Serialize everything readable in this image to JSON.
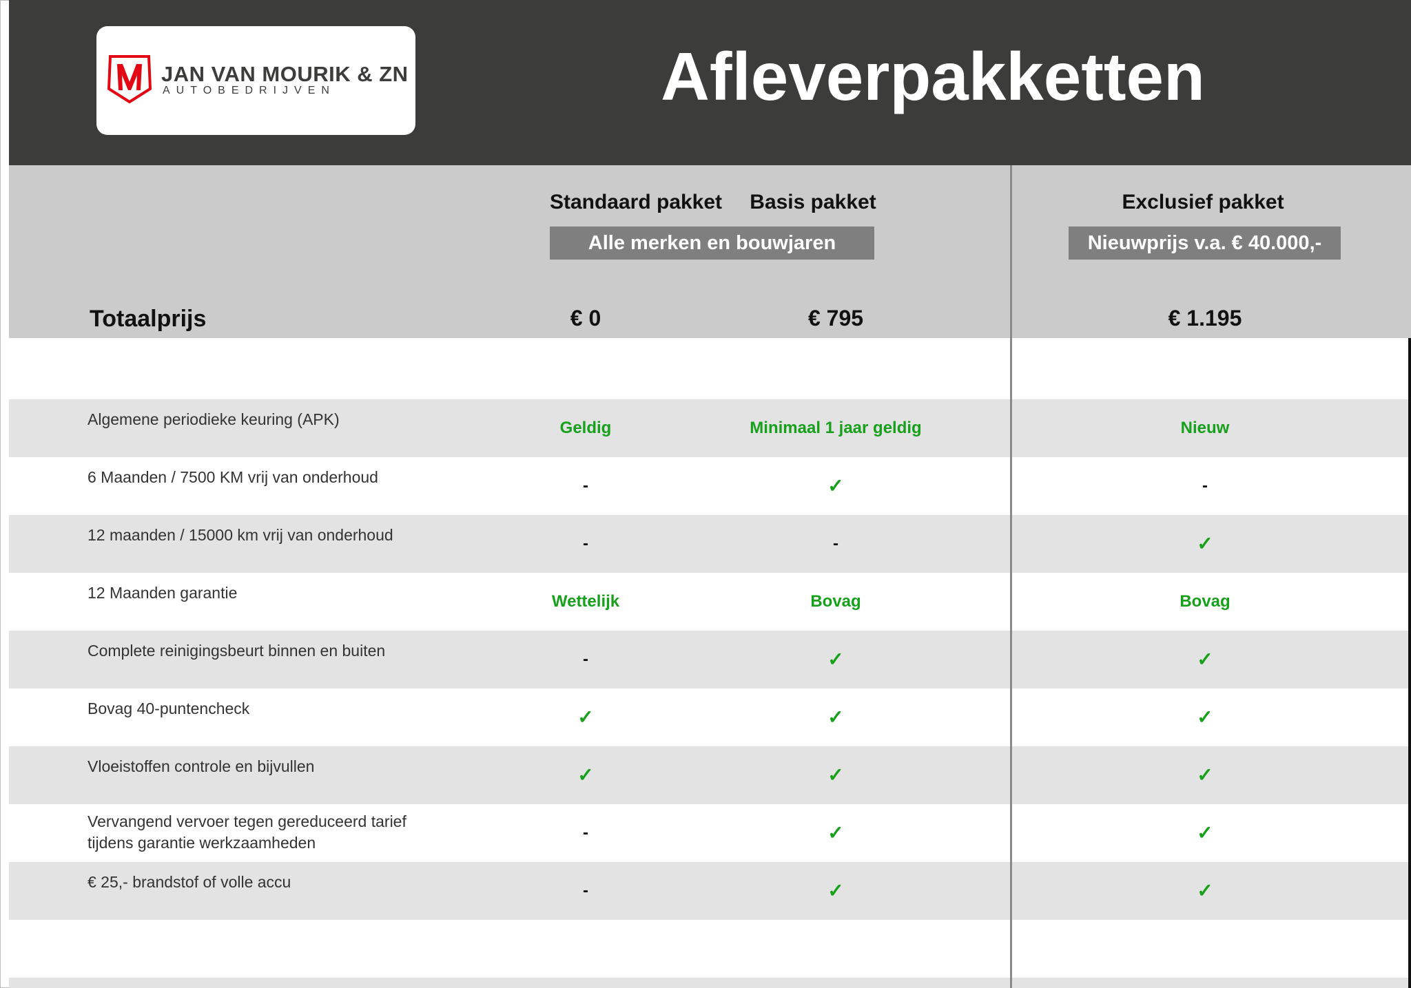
{
  "logo": {
    "name": "JAN VAN MOURIK & ZN",
    "subtitle": "AUTOBEDRIJVEN",
    "brand_color": "#e30613"
  },
  "title": "Afleverpakketten",
  "columns": [
    {
      "label": "Standaard pakket",
      "price": "€ 0"
    },
    {
      "label": "Basis pakket",
      "price": "€ 795"
    },
    {
      "label": "Exclusief pakket",
      "price": "€ 1.195"
    }
  ],
  "group_notes": {
    "standard_basis": "Alle merken en bouwjaren",
    "exclusive": "Nieuwprijs v.a. € 40.000,-"
  },
  "total_label": "Totaalprijs",
  "colors": {
    "header": "#3c3c3b",
    "band": "#cbcbcb",
    "row_alt": "#e3e3e3",
    "green": "#17a01c",
    "note_bg": "#7f7f7f"
  },
  "rows": [
    {
      "label": "Algemene periodieke keuring (APK)",
      "values": [
        "Geldig",
        "Minimaal 1 jaar geldig",
        "Nieuw"
      ]
    },
    {
      "label": "6 Maanden / 7500 KM vrij van onderhoud",
      "values": [
        "-",
        "✓",
        "-"
      ]
    },
    {
      "label": "12 maanden / 15000 km vrij van onderhoud",
      "values": [
        "-",
        "-",
        "✓"
      ]
    },
    {
      "label": "12 Maanden  garantie",
      "values": [
        "Wettelijk",
        "Bovag",
        "Bovag"
      ]
    },
    {
      "label": "Complete reinigingsbeurt binnen en buiten",
      "values": [
        "-",
        "✓",
        "✓"
      ]
    },
    {
      "label": "Bovag 40-puntencheck",
      "values": [
        "✓",
        "✓",
        "✓"
      ]
    },
    {
      "label": "Vloeistoffen controle en bijvullen",
      "values": [
        "✓",
        "✓",
        "✓"
      ]
    },
    {
      "label": "Vervangend vervoer tegen gereduceerd tarief\ntijdens garantie werkzaamheden",
      "values": [
        "-",
        "✓",
        "✓"
      ]
    },
    {
      "label": "€ 25,- brandstof of  volle accu",
      "values": [
        "-",
        "✓",
        "✓"
      ]
    }
  ]
}
